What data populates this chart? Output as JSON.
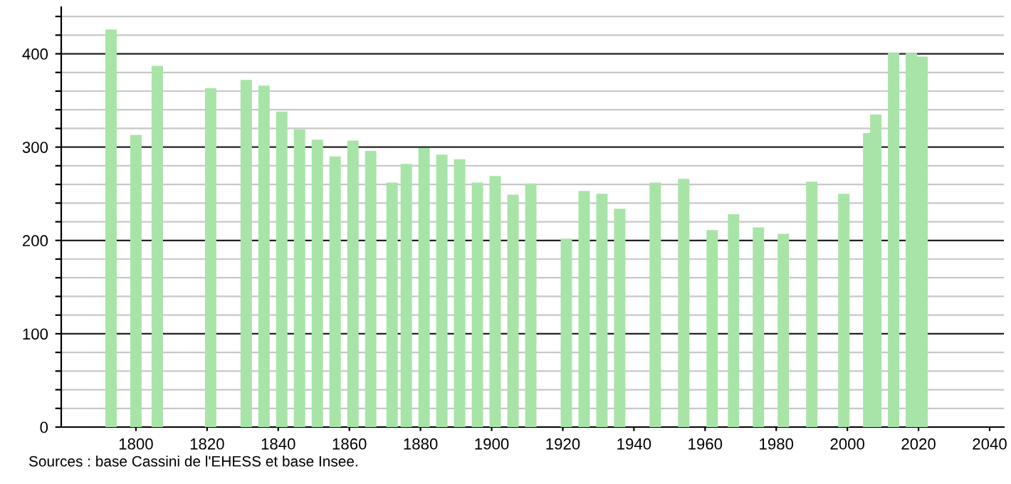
{
  "chart_data": {
    "type": "bar",
    "x": [
      1793,
      1800,
      1806,
      1821,
      1831,
      1836,
      1841,
      1846,
      1851,
      1856,
      1861,
      1866,
      1872,
      1876,
      1881,
      1886,
      1891,
      1896,
      1901,
      1906,
      1911,
      1921,
      1926,
      1931,
      1936,
      1946,
      1954,
      1962,
      1968,
      1975,
      1982,
      1990,
      1999,
      2006,
      2008,
      2013,
      2018,
      2021
    ],
    "values": [
      426,
      313,
      387,
      363,
      372,
      366,
      338,
      319,
      308,
      290,
      307,
      296,
      262,
      282,
      299,
      292,
      287,
      262,
      269,
      249,
      261,
      202,
      253,
      250,
      234,
      262,
      266,
      211,
      228,
      214,
      207,
      263,
      250,
      315,
      335,
      401,
      401,
      397
    ],
    "color": "#a8e4a8",
    "xlim": [
      1779,
      2044
    ],
    "xticks": [
      1800,
      1820,
      1840,
      1860,
      1880,
      1900,
      1920,
      1940,
      1960,
      1980,
      2000,
      2020,
      2040
    ],
    "ylim": [
      0,
      450
    ],
    "yticks": [
      0,
      {
        "value": 20,
        "label": null
      },
      {
        "value": 40,
        "label": null
      },
      {
        "value": 60,
        "label": null
      },
      {
        "value": 80,
        "label": null
      },
      100,
      {
        "value": 120,
        "label": null
      },
      {
        "value": 140,
        "label": null
      },
      {
        "value": 160,
        "label": null
      },
      {
        "value": 180,
        "label": null
      },
      200,
      {
        "value": 220,
        "label": null
      },
      {
        "value": 240,
        "label": null
      },
      {
        "value": 260,
        "label": null
      },
      {
        "value": 280,
        "label": null
      },
      300,
      {
        "value": 320,
        "label": null
      },
      {
        "value": 340,
        "label": null
      },
      {
        "value": 360,
        "label": null
      },
      {
        "value": 380,
        "label": null
      },
      400,
      {
        "value": 420,
        "label": null
      },
      {
        "value": 440,
        "label": null
      }
    ],
    "grid": "y",
    "annotations": [
      "Sources : base Cassini de l'EHESS et base Insee."
    ]
  }
}
